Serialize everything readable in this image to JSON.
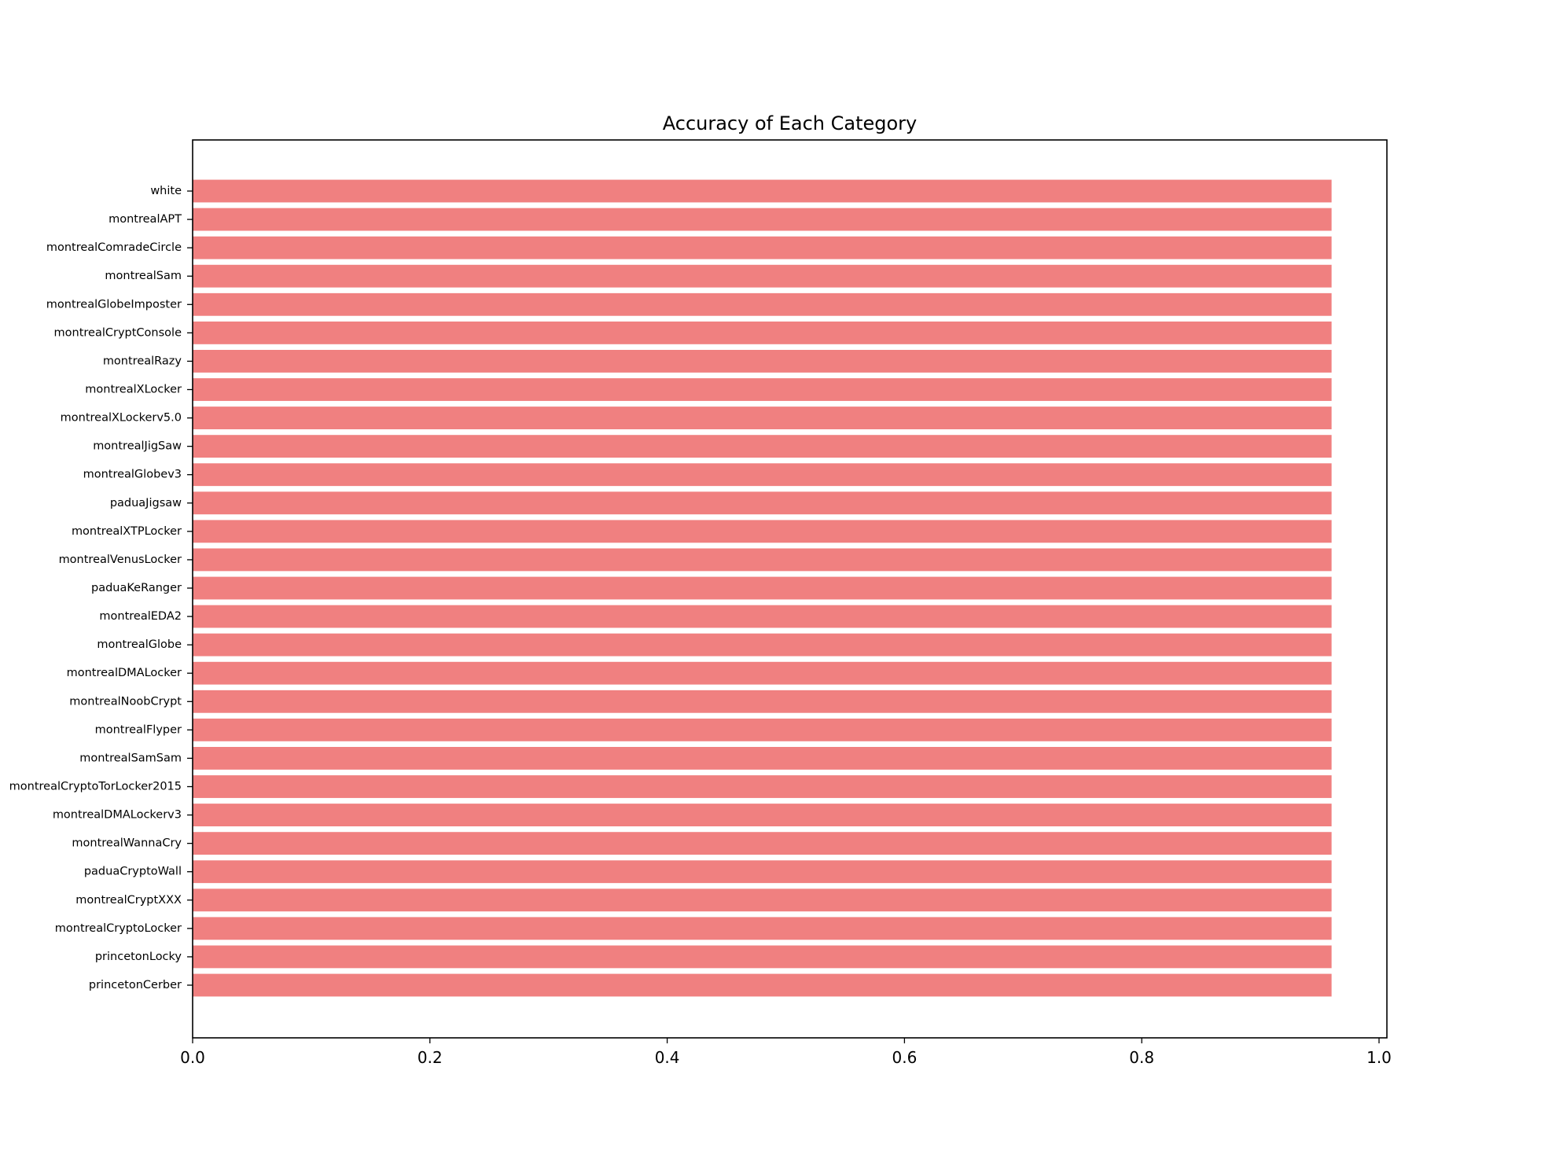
{
  "chart_data": {
    "type": "bar",
    "orientation": "horizontal",
    "title": "Accuracy of Each Category",
    "xlabel": "",
    "ylabel": "",
    "xlim": [
      0,
      1.0
    ],
    "x_ticks": [
      "0.0",
      "0.2",
      "0.4",
      "0.6",
      "0.8",
      "1.0"
    ],
    "x_tick_values": [
      0.0,
      0.2,
      0.4,
      0.6,
      0.8,
      1.0
    ],
    "grid": false,
    "legend": "none",
    "bar_color": "#f08080",
    "categories": [
      "white",
      "montrealAPT",
      "montrealComradeCircle",
      "montrealSam",
      "montrealGlobeImposter",
      "montrealCryptConsole",
      "montrealRazy",
      "montrealXLocker",
      "montrealXLockerv5.0",
      "montrealJigSaw",
      "montrealGlobev3",
      "paduaJigsaw",
      "montrealXTPLocker",
      "montrealVenusLocker",
      "paduaKeRanger",
      "montrealEDA2",
      "montrealGlobe",
      "montrealDMALocker",
      "montrealNoobCrypt",
      "montrealFlyper",
      "montrealSamSam",
      "montrealCryptoTorLocker2015",
      "montrealDMALockerv3",
      "montrealWannaCry",
      "paduaCryptoWall",
      "montrealCryptXXX",
      "montrealCryptoLocker",
      "princetonLocky",
      "princetonCerber"
    ],
    "values": [
      0.96,
      0.96,
      0.96,
      0.96,
      0.96,
      0.96,
      0.96,
      0.96,
      0.96,
      0.96,
      0.96,
      0.96,
      0.96,
      0.96,
      0.96,
      0.96,
      0.96,
      0.96,
      0.96,
      0.96,
      0.96,
      0.96,
      0.96,
      0.96,
      0.96,
      0.96,
      0.96,
      0.96,
      0.96
    ]
  }
}
